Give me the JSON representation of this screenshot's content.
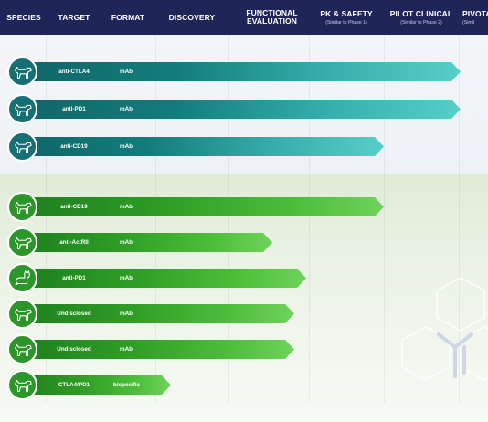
{
  "header": {
    "columns": [
      {
        "label": "SPECIES"
      },
      {
        "label": "TARGET"
      },
      {
        "label": "FORMAT"
      },
      {
        "label": "DISCOVERY"
      },
      {
        "label": "FUNCTIONAL EVALUATION"
      },
      {
        "label": "PK & SAFETY",
        "sub": "(Similar to Phase 1)"
      },
      {
        "label": "PILOT CLINICAL",
        "sub": "(Similar to Phase 2)"
      },
      {
        "label": "PIVOTA",
        "sub": "(Simil"
      }
    ]
  },
  "colors": {
    "header_bg": "#1f2559",
    "teal": "#137d7b",
    "green": "#2f9d25"
  },
  "pipeline": {
    "teal_rows": [
      {
        "species_icon": "dog-icon",
        "target": "anti-CTLA4",
        "format": "mAb",
        "stage": "PILOT CLINICAL",
        "stage_progress": 0.85
      },
      {
        "species_icon": "dog-icon",
        "target": "anti-PD1",
        "format": "mAb",
        "stage": "PILOT CLINICAL",
        "stage_progress": 0.85
      },
      {
        "species_icon": "dog-icon",
        "target": "anti-CD19",
        "format": "mAb",
        "stage": "PK & SAFETY",
        "stage_progress": 0.95
      }
    ],
    "green_rows": [
      {
        "species_icon": "dog-icon",
        "target": "anti-CD19",
        "format": "mAb",
        "stage": "PK & SAFETY",
        "stage_progress": 0.95
      },
      {
        "species_icon": "dog-icon",
        "target": "anti-ActRII",
        "format": "mAb",
        "stage": "FUNCTIONAL EVALUATION",
        "stage_progress": 0.35
      },
      {
        "species_icon": "cat-icon",
        "target": "anti-PD1",
        "format": "mAb",
        "stage": "FUNCTIONAL EVALUATION",
        "stage_progress": 0.75
      },
      {
        "species_icon": "dog-icon",
        "target": "Undisclosed",
        "format": "mAb",
        "stage": "FUNCTIONAL EVALUATION",
        "stage_progress": 0.6
      },
      {
        "species_icon": "dog-icon",
        "target": "Undisclosed",
        "format": "mAb",
        "stage": "FUNCTIONAL EVALUATION",
        "stage_progress": 0.6
      },
      {
        "species_icon": "dog-icon",
        "target": "CTLA4/PD1",
        "format": "bispecific",
        "stage": "DISCOVERY",
        "stage_progress": 0.15
      }
    ]
  }
}
